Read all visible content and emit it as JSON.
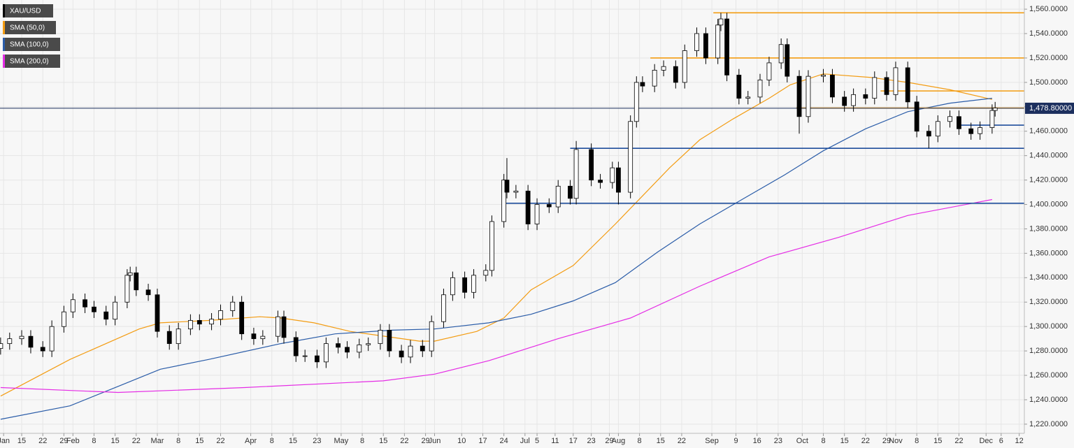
{
  "chart_data": {
    "type": "candlestick",
    "candles": {
      "name": "XAU/USD",
      "up_color": "#ffffff",
      "down_color": "#000000",
      "x": [
        8,
        11,
        15,
        18,
        22,
        25,
        29,
        32,
        36,
        39,
        43,
        46,
        50,
        51,
        53,
        57,
        60,
        64,
        67,
        71,
        74,
        78,
        81,
        85,
        88,
        92,
        95,
        100,
        102,
        106,
        109,
        113,
        116,
        120,
        123,
        127,
        130,
        134,
        137,
        141,
        144,
        148,
        151,
        155,
        158,
        162,
        165,
        169,
        171,
        175,
        176,
        179,
        183,
        186,
        190,
        193,
        197,
        199,
        204,
        207,
        211,
        213,
        217,
        219,
        221,
        225,
        228,
        232,
        235,
        239,
        242,
        246,
        247,
        249,
        253,
        256,
        260,
        263,
        267,
        269,
        273,
        276,
        281,
        284,
        288,
        291,
        295,
        298,
        302,
        305,
        309,
        312,
        316,
        319,
        323,
        326,
        330,
        333,
        337,
        338
      ],
      "open": [
        1282,
        1286,
        1290,
        1292,
        1283,
        1280,
        1300,
        1312,
        1322,
        1316,
        1312,
        1306,
        1320,
        1342,
        1344,
        1330,
        1326,
        1296,
        1286,
        1298,
        1305,
        1302,
        1306,
        1313,
        1320,
        1294,
        1290,
        1292,
        1308,
        1291,
        1276,
        1276,
        1271,
        1286,
        1283,
        1279,
        1285,
        1286,
        1297,
        1280,
        1275,
        1284,
        1280,
        1304,
        1326,
        1340,
        1328,
        1342,
        1346,
        1386,
        1420,
        1410,
        1411,
        1384,
        1400,
        1398,
        1415,
        1405,
        1445,
        1420,
        1418,
        1430,
        1410,
        1468,
        1500,
        1497,
        1510,
        1513,
        1500,
        1526,
        1540,
        1520,
        1547,
        1552,
        1506,
        1487,
        1488,
        1502,
        1516,
        1531,
        1505,
        1472,
        1505,
        1506,
        1488,
        1481,
        1490,
        1487,
        1504,
        1490,
        1512,
        1484,
        1460,
        1456,
        1468,
        1472,
        1462,
        1458,
        1463,
        1477
      ],
      "high": [
        1291,
        1295,
        1297,
        1297,
        1288,
        1305,
        1317,
        1327,
        1327,
        1321,
        1317,
        1325,
        1347,
        1349,
        1349,
        1335,
        1331,
        1301,
        1303,
        1310,
        1310,
        1311,
        1318,
        1325,
        1325,
        1299,
        1297,
        1313,
        1313,
        1296,
        1281,
        1281,
        1291,
        1291,
        1288,
        1290,
        1291,
        1302,
        1302,
        1285,
        1289,
        1289,
        1309,
        1331,
        1345,
        1345,
        1347,
        1351,
        1391,
        1425,
        1438,
        1416,
        1416,
        1405,
        1405,
        1420,
        1420,
        1452,
        1450,
        1425,
        1435,
        1435,
        1473,
        1505,
        1505,
        1515,
        1518,
        1518,
        1531,
        1545,
        1545,
        1552,
        1557,
        1557,
        1511,
        1493,
        1507,
        1521,
        1536,
        1536,
        1510,
        1510,
        1511,
        1511,
        1493,
        1495,
        1495,
        1509,
        1509,
        1517,
        1517,
        1489,
        1465,
        1473,
        1477,
        1477,
        1467,
        1468,
        1482,
        1484
      ],
      "low": [
        1277,
        1281,
        1285,
        1278,
        1275,
        1275,
        1295,
        1307,
        1311,
        1307,
        1301,
        1301,
        1315,
        1337,
        1325,
        1321,
        1291,
        1281,
        1281,
        1293,
        1297,
        1297,
        1301,
        1308,
        1289,
        1285,
        1285,
        1287,
        1286,
        1271,
        1271,
        1266,
        1266,
        1278,
        1274,
        1274,
        1280,
        1281,
        1275,
        1270,
        1270,
        1275,
        1275,
        1299,
        1321,
        1323,
        1323,
        1337,
        1341,
        1381,
        1405,
        1405,
        1379,
        1379,
        1393,
        1393,
        1400,
        1400,
        1415,
        1413,
        1413,
        1400,
        1405,
        1463,
        1492,
        1492,
        1505,
        1495,
        1495,
        1521,
        1515,
        1515,
        1542,
        1501,
        1482,
        1482,
        1483,
        1497,
        1511,
        1500,
        1458,
        1467,
        1500,
        1483,
        1476,
        1476,
        1482,
        1482,
        1485,
        1485,
        1479,
        1455,
        1446,
        1451,
        1463,
        1457,
        1453,
        1453,
        1458,
        1472
      ],
      "close": [
        1286,
        1290,
        1292,
        1283,
        1280,
        1300,
        1312,
        1322,
        1316,
        1312,
        1306,
        1320,
        1342,
        1344,
        1330,
        1326,
        1296,
        1286,
        1298,
        1305,
        1302,
        1306,
        1313,
        1320,
        1294,
        1290,
        1292,
        1308,
        1291,
        1276,
        1276,
        1271,
        1286,
        1283,
        1279,
        1285,
        1286,
        1297,
        1280,
        1275,
        1284,
        1280,
        1304,
        1326,
        1340,
        1328,
        1342,
        1346,
        1386,
        1420,
        1410,
        1411,
        1384,
        1400,
        1398,
        1415,
        1405,
        1445,
        1420,
        1418,
        1430,
        1410,
        1468,
        1500,
        1497,
        1510,
        1513,
        1500,
        1526,
        1540,
        1520,
        1547,
        1552,
        1506,
        1487,
        1488,
        1502,
        1516,
        1531,
        1505,
        1472,
        1505,
        1506,
        1488,
        1481,
        1490,
        1487,
        1504,
        1490,
        1512,
        1484,
        1460,
        1456,
        1468,
        1472,
        1462,
        1458,
        1463,
        1477,
        1479
      ]
    },
    "series": [
      {
        "name": "SMA (50,0)",
        "color": "#f39c12",
        "x": [
          8,
          31,
          54,
          61,
          77,
          94,
          101,
          112,
          124,
          147,
          152,
          166,
          175,
          184,
          198,
          212,
          221,
          230,
          240,
          251,
          263,
          270,
          281,
          297,
          309,
          323,
          337
        ],
        "values": [
          1243,
          1273,
          1298,
          1303,
          1305,
          1308,
          1307,
          1303,
          1296,
          1288,
          1288,
          1296,
          1307,
          1330,
          1350,
          1384,
          1407,
          1430,
          1453,
          1470,
          1487,
          1498,
          1507,
          1504,
          1500,
          1494,
          1486
        ]
      },
      {
        "name": "SMA (100,0)",
        "color": "#2a5ca8",
        "x": [
          8,
          31,
          47,
          61,
          77,
          101,
          119,
          138,
          152,
          170,
          184,
          198,
          212,
          226,
          240,
          254,
          268,
          281,
          295,
          309,
          323,
          337
        ],
        "values": [
          1224,
          1235,
          1251,
          1265,
          1273,
          1286,
          1294,
          1297,
          1298,
          1303,
          1310,
          1321,
          1336,
          1361,
          1384,
          1404,
          1424,
          1444,
          1462,
          1476,
          1483,
          1487
        ]
      },
      {
        "name": "SMA (200,0)",
        "color": "#e52ce5",
        "x": [
          8,
          47,
          89,
          135,
          152,
          170,
          193,
          217,
          240,
          263,
          286,
          309,
          337
        ],
        "values": [
          1250,
          1246,
          1250,
          1255.5,
          1261,
          1272,
          1290,
          1307,
          1333,
          1357,
          1373,
          1391,
          1404
        ]
      }
    ],
    "levels": [
      {
        "value": 1557,
        "from": 244.5,
        "color": "#f39c12"
      },
      {
        "value": 1520,
        "from": 223.6,
        "color": "#f39c12"
      },
      {
        "value": 1493,
        "from": 300,
        "color": "#f39c12"
      },
      {
        "value": 1479,
        "from": 272,
        "color": "#f39c12"
      },
      {
        "value": 1465,
        "from": 325.7,
        "color": "#1f4e9c"
      },
      {
        "value": 1446,
        "from": 197,
        "color": "#1f4e9c"
      },
      {
        "value": 1401,
        "from": 174.4,
        "color": "#1f4e9c"
      }
    ],
    "last": {
      "value": 1478.8,
      "label": "1,478.80000",
      "color": "#1c2f5e"
    },
    "xlim": [
      7.8,
      347.7
    ],
    "ylim": [
      1212.5,
      1567.5
    ],
    "grid": true,
    "xticks": [
      {
        "value": 9,
        "label": "Jan"
      },
      {
        "value": 15,
        "label": "15"
      },
      {
        "value": 22,
        "label": "22"
      },
      {
        "value": 29,
        "label": "29"
      },
      {
        "value": 32,
        "label": "Feb"
      },
      {
        "value": 39,
        "label": "8"
      },
      {
        "value": 46,
        "label": "15"
      },
      {
        "value": 53,
        "label": "22"
      },
      {
        "value": 60,
        "label": "Mar"
      },
      {
        "value": 67,
        "label": "8"
      },
      {
        "value": 74,
        "label": "15"
      },
      {
        "value": 81,
        "label": "22"
      },
      {
        "value": 91,
        "label": "Apr"
      },
      {
        "value": 98,
        "label": "8"
      },
      {
        "value": 105,
        "label": "15"
      },
      {
        "value": 113,
        "label": "23"
      },
      {
        "value": 121,
        "label": "May"
      },
      {
        "value": 128,
        "label": "8"
      },
      {
        "value": 135,
        "label": "15"
      },
      {
        "value": 142,
        "label": "22"
      },
      {
        "value": 149,
        "label": "29"
      },
      {
        "value": 152,
        "label": "Jun"
      },
      {
        "value": 161,
        "label": "10"
      },
      {
        "value": 168,
        "label": "17"
      },
      {
        "value": 175,
        "label": "24"
      },
      {
        "value": 182,
        "label": "Jul"
      },
      {
        "value": 186,
        "label": "5"
      },
      {
        "value": 192,
        "label": "11"
      },
      {
        "value": 198,
        "label": "17"
      },
      {
        "value": 204,
        "label": "23"
      },
      {
        "value": 210,
        "label": "29"
      },
      {
        "value": 213,
        "label": "Aug"
      },
      {
        "value": 220,
        "label": "8"
      },
      {
        "value": 227,
        "label": "15"
      },
      {
        "value": 234,
        "label": "22"
      },
      {
        "value": 244,
        "label": "Sep"
      },
      {
        "value": 252,
        "label": "9"
      },
      {
        "value": 259,
        "label": "16"
      },
      {
        "value": 266,
        "label": "23"
      },
      {
        "value": 274,
        "label": "Oct"
      },
      {
        "value": 281,
        "label": "8"
      },
      {
        "value": 288,
        "label": "15"
      },
      {
        "value": 295,
        "label": "22"
      },
      {
        "value": 302,
        "label": "29"
      },
      {
        "value": 305,
        "label": "Nov"
      },
      {
        "value": 312,
        "label": "8"
      },
      {
        "value": 319,
        "label": "15"
      },
      {
        "value": 326,
        "label": "22"
      },
      {
        "value": 335,
        "label": "Dec"
      },
      {
        "value": 340,
        "label": "6"
      },
      {
        "value": 346,
        "label": "12"
      }
    ],
    "yticks": [
      {
        "value": 1220,
        "label": "1,220.0000"
      },
      {
        "value": 1240,
        "label": "1,240.0000"
      },
      {
        "value": 1260,
        "label": "1,260.0000"
      },
      {
        "value": 1280,
        "label": "1,280.0000"
      },
      {
        "value": 1300,
        "label": "1,300.0000"
      },
      {
        "value": 1320,
        "label": "1,320.0000"
      },
      {
        "value": 1340,
        "label": "1,340.0000"
      },
      {
        "value": 1360,
        "label": "1,360.0000"
      },
      {
        "value": 1380,
        "label": "1,380.0000"
      },
      {
        "value": 1400,
        "label": "1,400.0000"
      },
      {
        "value": 1420,
        "label": "1,420.0000"
      },
      {
        "value": 1440,
        "label": "1,440.0000"
      },
      {
        "value": 1460,
        "label": "1,460.0000"
      },
      {
        "value": 1480,
        "label": "1,480.0000"
      },
      {
        "value": 1500,
        "label": "1,500.0000"
      },
      {
        "value": 1520,
        "label": "1,520.0000"
      },
      {
        "value": 1540,
        "label": "1,540.0000"
      },
      {
        "value": 1560,
        "label": "1,560.0000"
      }
    ]
  }
}
